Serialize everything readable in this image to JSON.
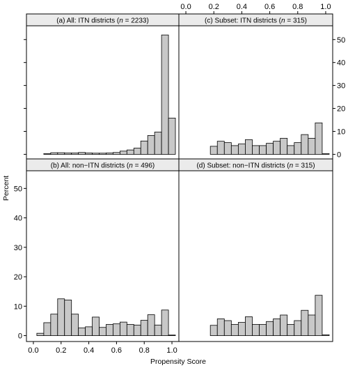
{
  "chart_data": {
    "type": "bar",
    "xlabel": "Propensity Score",
    "ylabel": "Percent",
    "x_ticks": [
      "0.0",
      "0.2",
      "0.4",
      "0.6",
      "0.8",
      "1.0"
    ],
    "y_ticks": [
      "0",
      "10",
      "20",
      "30",
      "40",
      "50"
    ],
    "xlim": [
      -0.05,
      1.05
    ],
    "ylim": [
      -2,
      56
    ],
    "bins": [
      -0.025,
      0.025,
      0.075,
      0.125,
      0.175,
      0.225,
      0.275,
      0.325,
      0.375,
      0.425,
      0.475,
      0.525,
      0.575,
      0.625,
      0.675,
      0.725,
      0.775,
      0.825,
      0.875,
      0.925,
      0.975,
      1.025
    ],
    "panels": [
      {
        "title_prefix": "(a) All: ITN districts (",
        "title_n_label": "n",
        "title_suffix": " = 2233)",
        "values": [
          0,
          0,
          0.3,
          0.7,
          0.7,
          0.6,
          0.6,
          0.8,
          0.6,
          0.5,
          0.5,
          0.6,
          0.8,
          1.4,
          1.9,
          2.7,
          5.8,
          8.2,
          9.7,
          52.0,
          15.8
        ]
      },
      {
        "title_prefix": "(c) Subset: ITN districts (",
        "title_n_label": "n",
        "title_suffix": " = 315)",
        "values": [
          0,
          0,
          0,
          0,
          3.5,
          5.7,
          5.1,
          3.8,
          4.5,
          6.4,
          3.8,
          3.8,
          4.8,
          5.7,
          7.0,
          3.8,
          5.1,
          8.6,
          7.0,
          13.7,
          0.3
        ]
      },
      {
        "title_prefix": "(b) All: non−ITN districts (",
        "title_n_label": "n",
        "title_suffix": " = 496)",
        "values": [
          0,
          0.8,
          4.4,
          7.3,
          12.5,
          12.1,
          7.3,
          2.6,
          3.0,
          6.3,
          2.8,
          3.8,
          4.0,
          4.6,
          3.8,
          3.6,
          5.2,
          7.1,
          3.6,
          8.7,
          0.2
        ]
      },
      {
        "title_prefix": "(d) Subset: non−ITN districts (",
        "title_n_label": "n",
        "title_suffix": " = 315)",
        "values": [
          0,
          0,
          0,
          0,
          3.5,
          5.7,
          5.1,
          3.8,
          4.5,
          6.4,
          3.8,
          3.8,
          4.8,
          5.7,
          7.0,
          3.8,
          5.1,
          8.6,
          7.0,
          13.7,
          0.3
        ]
      }
    ],
    "bar_color": "#c8c8c8",
    "strip_color": "#ebebeb"
  }
}
